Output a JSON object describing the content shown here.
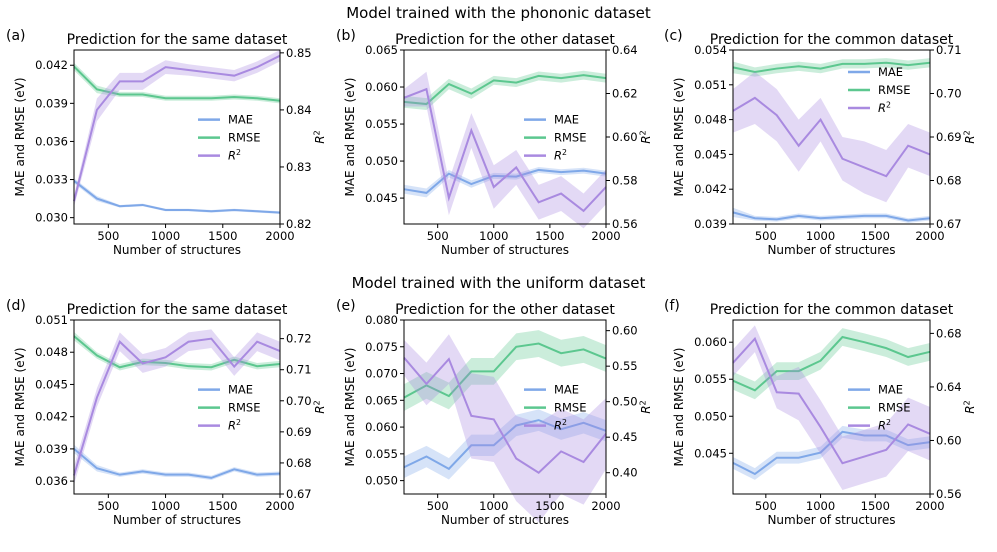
{
  "figure": {
    "row_titles": [
      "Model trained with the phononic dataset",
      "Model trained with the uniform dataset"
    ]
  },
  "colors": {
    "MAE": "#7fa8e8",
    "RMSE": "#5cc78f",
    "R2": "#a98ae0"
  },
  "chart_data": [
    {
      "type": "line",
      "panel": "(a)",
      "title": "Prediction for the same dataset",
      "xlabel": "Number of structures",
      "ylabel_left": "MAE and RMSE (eV)",
      "ylabel_right": "R²",
      "x": [
        200,
        400,
        600,
        800,
        1000,
        1200,
        1400,
        1600,
        1800,
        2000
      ],
      "xlim": [
        200,
        2000
      ],
      "xticks": [
        "500",
        "1000",
        "1500",
        "2000"
      ],
      "ylim_left": [
        0.0295,
        0.0432
      ],
      "yticks_left": [
        "0.030",
        "0.033",
        "0.036",
        "0.039",
        "0.042"
      ],
      "ylim_right": [
        0.82,
        0.8505
      ],
      "yticks_right": [
        "0.82",
        "0.83",
        "0.84",
        "0.85"
      ],
      "legend": "center-right",
      "series": [
        {
          "name": "MAE",
          "axis": "left",
          "values": [
            0.0329,
            0.0315,
            0.0309,
            0.031,
            0.0306,
            0.0306,
            0.0305,
            0.0306,
            0.0305,
            0.0304
          ],
          "band": [
            0.0002,
            0.0002,
            0.0001,
            0.0001,
            0.0001,
            0.0001,
            0.0001,
            0.0001,
            0.0001,
            0.0001
          ]
        },
        {
          "name": "RMSE",
          "axis": "left",
          "values": [
            0.0419,
            0.0401,
            0.0397,
            0.0397,
            0.0394,
            0.0394,
            0.0394,
            0.0395,
            0.0394,
            0.0392
          ],
          "band": [
            0.0003,
            0.0003,
            0.0002,
            0.0002,
            0.0002,
            0.0002,
            0.0002,
            0.0002,
            0.0002,
            0.0002
          ]
        },
        {
          "name": "R²",
          "axis": "right",
          "values": [
            0.824,
            0.84,
            0.845,
            0.845,
            0.8475,
            0.847,
            0.8465,
            0.846,
            0.8475,
            0.8495
          ],
          "band": [
            0.001,
            0.002,
            0.0015,
            0.0015,
            0.0012,
            0.001,
            0.001,
            0.001,
            0.001,
            0.001
          ]
        }
      ]
    },
    {
      "type": "line",
      "panel": "(b)",
      "title": "Prediction for the other dataset",
      "xlabel": "Number of structures",
      "ylabel_left": "MAE and RMSE (eV)",
      "ylabel_right": "R²",
      "x": [
        200,
        400,
        600,
        800,
        1000,
        1200,
        1400,
        1600,
        1800,
        2000
      ],
      "xlim": [
        200,
        2000
      ],
      "xticks": [
        "500",
        "1000",
        "1500",
        "2000"
      ],
      "ylim_left": [
        0.0415,
        0.065
      ],
      "yticks_left": [
        "0.045",
        "0.050",
        "0.055",
        "0.060",
        "0.065"
      ],
      "ylim_right": [
        0.56,
        0.64
      ],
      "yticks_right": [
        "0.56",
        "0.58",
        "0.60",
        "0.62",
        "0.64"
      ],
      "legend": "center-right",
      "series": [
        {
          "name": "MAE",
          "axis": "left",
          "values": [
            0.0462,
            0.0457,
            0.0483,
            0.0469,
            0.048,
            0.0479,
            0.0488,
            0.0485,
            0.0487,
            0.0483
          ],
          "band": [
            0.0006,
            0.0006,
            0.0005,
            0.0005,
            0.0004,
            0.0004,
            0.0004,
            0.0004,
            0.0004,
            0.0004
          ]
        },
        {
          "name": "RMSE",
          "axis": "left",
          "values": [
            0.058,
            0.0577,
            0.0604,
            0.0591,
            0.0609,
            0.0606,
            0.0615,
            0.0612,
            0.0616,
            0.0612
          ],
          "band": [
            0.0008,
            0.0008,
            0.0007,
            0.0007,
            0.0006,
            0.0006,
            0.0006,
            0.0006,
            0.0006,
            0.0006
          ]
        },
        {
          "name": "R²",
          "axis": "right",
          "values": [
            0.618,
            0.622,
            0.572,
            0.603,
            0.577,
            0.586,
            0.57,
            0.574,
            0.566,
            0.577
          ],
          "band": [
            0.004,
            0.008,
            0.008,
            0.008,
            0.01,
            0.008,
            0.008,
            0.008,
            0.008,
            0.008
          ]
        }
      ]
    },
    {
      "type": "line",
      "panel": "(c)",
      "title": "Prediction for the common dataset",
      "xlabel": "Number of structures",
      "ylabel_left": "MAE and RMSE (eV)",
      "ylabel_right": "R²",
      "x": [
        200,
        400,
        600,
        800,
        1000,
        1200,
        1400,
        1600,
        1800,
        2000
      ],
      "xlim": [
        200,
        2000
      ],
      "xticks": [
        "500",
        "1000",
        "1500",
        "2000"
      ],
      "ylim_left": [
        0.039,
        0.054
      ],
      "yticks_left": [
        "0.039",
        "0.042",
        "0.045",
        "0.048",
        "0.051",
        "0.054"
      ],
      "ylim_right": [
        0.67,
        0.71
      ],
      "yticks_right": [
        "0.67",
        "0.68",
        "0.69",
        "0.70",
        "0.71"
      ],
      "legend": "top-right",
      "series": [
        {
          "name": "MAE",
          "axis": "left",
          "values": [
            0.04,
            0.0395,
            0.0394,
            0.0397,
            0.0395,
            0.0396,
            0.0397,
            0.0397,
            0.0393,
            0.0395
          ],
          "band": [
            0.0004,
            0.0002,
            0.0002,
            0.0002,
            0.0002,
            0.0002,
            0.0002,
            0.0002,
            0.0002,
            0.0002
          ]
        },
        {
          "name": "RMSE",
          "axis": "left",
          "values": [
            0.0525,
            0.0521,
            0.0524,
            0.0526,
            0.0524,
            0.0528,
            0.0528,
            0.0529,
            0.0527,
            0.0529
          ],
          "band": [
            0.0005,
            0.0004,
            0.0004,
            0.0004,
            0.0004,
            0.0004,
            0.0004,
            0.0004,
            0.0004,
            0.0004
          ]
        },
        {
          "name": "R²",
          "axis": "right",
          "values": [
            0.696,
            0.699,
            0.695,
            0.688,
            0.694,
            0.685,
            0.683,
            0.681,
            0.688,
            0.686
          ],
          "band": [
            0.005,
            0.006,
            0.006,
            0.006,
            0.005,
            0.005,
            0.006,
            0.006,
            0.005,
            0.005
          ]
        }
      ]
    },
    {
      "type": "line",
      "panel": "(d)",
      "title": "Prediction for the same dataset",
      "xlabel": "Number of structures",
      "ylabel_left": "MAE and RMSE (eV)",
      "ylabel_right": "R²",
      "x": [
        200,
        400,
        600,
        800,
        1000,
        1200,
        1400,
        1600,
        1800,
        2000
      ],
      "xlim": [
        200,
        2000
      ],
      "xticks": [
        "500",
        "1000",
        "1500",
        "2000"
      ],
      "ylim_left": [
        0.0348,
        0.051
      ],
      "yticks_left": [
        "0.036",
        "0.039",
        "0.042",
        "0.045",
        "0.048",
        "0.051"
      ],
      "ylim_right": [
        0.67,
        0.726
      ],
      "yticks_right": [
        "0.67",
        "0.68",
        "0.69",
        "0.70",
        "0.71",
        "0.72"
      ],
      "legend": "center-right",
      "series": [
        {
          "name": "MAE",
          "axis": "left",
          "values": [
            0.039,
            0.0372,
            0.0366,
            0.0369,
            0.0366,
            0.0366,
            0.0363,
            0.0371,
            0.0366,
            0.0367
          ],
          "band": [
            0.0004,
            0.0003,
            0.0002,
            0.0002,
            0.0002,
            0.0002,
            0.0002,
            0.0002,
            0.0002,
            0.0002
          ]
        },
        {
          "name": "RMSE",
          "axis": "left",
          "values": [
            0.0495,
            0.0477,
            0.0466,
            0.0471,
            0.047,
            0.0467,
            0.0466,
            0.0473,
            0.0467,
            0.0469
          ],
          "band": [
            0.0004,
            0.0003,
            0.0003,
            0.0003,
            0.0003,
            0.0003,
            0.0003,
            0.0003,
            0.0003,
            0.0003
          ]
        },
        {
          "name": "R²",
          "axis": "right",
          "values": [
            0.676,
            0.701,
            0.719,
            0.712,
            0.714,
            0.719,
            0.72,
            0.711,
            0.719,
            0.716
          ],
          "band": [
            0.003,
            0.003,
            0.003,
            0.003,
            0.003,
            0.003,
            0.003,
            0.003,
            0.003,
            0.003
          ]
        }
      ]
    },
    {
      "type": "line",
      "panel": "(e)",
      "title": "Prediction for the other dataset",
      "xlabel": "Number of structures",
      "ylabel_left": "MAE and RMSE (eV)",
      "ylabel_right": "R²",
      "x": [
        200,
        400,
        600,
        800,
        1000,
        1200,
        1400,
        1600,
        1800,
        2000
      ],
      "xlim": [
        200,
        2000
      ],
      "xticks": [
        "500",
        "1000",
        "1500",
        "2000"
      ],
      "ylim_left": [
        0.0475,
        0.08
      ],
      "yticks_left": [
        "0.050",
        "0.055",
        "0.060",
        "0.065",
        "0.070",
        "0.075",
        "0.080"
      ],
      "ylim_right": [
        0.37,
        0.615
      ],
      "yticks_right": [
        "0.40",
        "0.45",
        "0.50",
        "0.55",
        "0.60"
      ],
      "legend": "center-right",
      "series": [
        {
          "name": "MAE",
          "axis": "left",
          "values": [
            0.0525,
            0.0545,
            0.0522,
            0.0566,
            0.0566,
            0.0603,
            0.0613,
            0.0596,
            0.0608,
            0.0593
          ],
          "band": [
            0.002,
            0.002,
            0.002,
            0.002,
            0.002,
            0.002,
            0.002,
            0.002,
            0.002,
            0.002
          ]
        },
        {
          "name": "RMSE",
          "axis": "left",
          "values": [
            0.0655,
            0.0678,
            0.0658,
            0.0704,
            0.0704,
            0.075,
            0.0756,
            0.0738,
            0.0745,
            0.0728
          ],
          "band": [
            0.0025,
            0.0025,
            0.0025,
            0.0025,
            0.0025,
            0.0025,
            0.0025,
            0.0025,
            0.0025,
            0.0025
          ]
        },
        {
          "name": "R²",
          "axis": "right",
          "values": [
            0.562,
            0.525,
            0.56,
            0.48,
            0.475,
            0.42,
            0.4,
            0.43,
            0.415,
            0.455
          ],
          "band": [
            0.025,
            0.03,
            0.035,
            0.06,
            0.06,
            0.06,
            0.07,
            0.06,
            0.06,
            0.05
          ]
        }
      ]
    },
    {
      "type": "line",
      "panel": "(f)",
      "title": "Prediction for the common dataset",
      "xlabel": "Number of structures",
      "ylabel_left": "MAE and RMSE (eV)",
      "ylabel_right": "R²",
      "x": [
        200,
        400,
        600,
        800,
        1000,
        1200,
        1400,
        1600,
        1800,
        2000
      ],
      "xlim": [
        200,
        2000
      ],
      "xticks": [
        "500",
        "1000",
        "1500",
        "2000"
      ],
      "ylim_left": [
        0.0395,
        0.063
      ],
      "yticks_left": [
        "0.045",
        "0.050",
        "0.055",
        "0.060"
      ],
      "ylim_right": [
        0.56,
        0.69
      ],
      "yticks_right": [
        "0.56",
        "0.60",
        "0.64",
        "0.68"
      ],
      "legend": "center-right",
      "series": [
        {
          "name": "MAE",
          "axis": "left",
          "values": [
            0.0437,
            0.0422,
            0.0444,
            0.0444,
            0.0451,
            0.0479,
            0.0474,
            0.0474,
            0.0461,
            0.0465
          ],
          "band": [
            0.0008,
            0.0008,
            0.0008,
            0.0008,
            0.0008,
            0.0008,
            0.0008,
            0.0008,
            0.0008,
            0.0008
          ]
        },
        {
          "name": "RMSE",
          "axis": "left",
          "values": [
            0.0548,
            0.0535,
            0.0561,
            0.0561,
            0.0575,
            0.0607,
            0.06,
            0.0592,
            0.058,
            0.0587
          ],
          "band": [
            0.0012,
            0.0012,
            0.0012,
            0.0012,
            0.0012,
            0.0012,
            0.0012,
            0.0012,
            0.0012,
            0.0012
          ]
        },
        {
          "name": "R²",
          "axis": "right",
          "values": [
            0.658,
            0.676,
            0.636,
            0.635,
            0.61,
            0.583,
            0.588,
            0.593,
            0.612,
            0.605
          ],
          "band": [
            0.01,
            0.01,
            0.012,
            0.02,
            0.02,
            0.02,
            0.02,
            0.02,
            0.02,
            0.02
          ]
        }
      ]
    }
  ]
}
